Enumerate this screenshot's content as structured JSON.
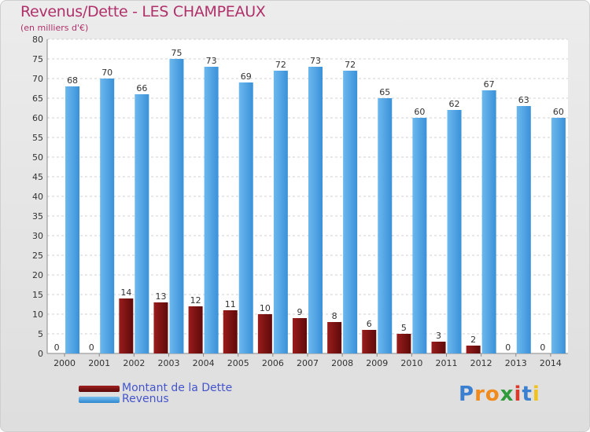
{
  "header": {
    "title": "Revenus/Dette - LES CHAMPEAUX",
    "subtitle": "(en milliers d'€)"
  },
  "legend": {
    "items": [
      {
        "label": "Montant de la Dette",
        "color": "#7a1010"
      },
      {
        "label": "Revenus",
        "color": "#4aa3e6"
      }
    ]
  },
  "logo": {
    "letters": [
      {
        "ch": "P",
        "color": "#3b7fd0"
      },
      {
        "ch": "r",
        "color": "#f08a1c"
      },
      {
        "ch": "o",
        "color": "#f08a1c"
      },
      {
        "ch": "x",
        "color": "#2f9b3a"
      },
      {
        "ch": "i",
        "color": "#d93a2a"
      },
      {
        "ch": "t",
        "color": "#3b7fd0"
      },
      {
        "ch": "i",
        "color": "#f2c21c"
      }
    ]
  },
  "chart_data": {
    "type": "bar",
    "title": "Revenus/Dette - LES CHAMPEAUX",
    "subtitle": "(en milliers d'€)",
    "categories": [
      "2000",
      "2001",
      "2002",
      "2003",
      "2004",
      "2005",
      "2006",
      "2007",
      "2008",
      "2009",
      "2010",
      "2011",
      "2012",
      "2013",
      "2014"
    ],
    "series": [
      {
        "name": "Montant de la Dette",
        "color": "#7a1010",
        "values": [
          0,
          0,
          14,
          13,
          12,
          11,
          10,
          9,
          8,
          6,
          5,
          3,
          2,
          0,
          0
        ]
      },
      {
        "name": "Revenus",
        "color": "#4aa3e6",
        "values": [
          68,
          70,
          66,
          75,
          73,
          69,
          72,
          73,
          72,
          65,
          60,
          62,
          67,
          63,
          60
        ]
      }
    ],
    "ylim": [
      0,
      80
    ],
    "yticks": [
      0,
      5,
      10,
      15,
      20,
      25,
      30,
      35,
      40,
      45,
      50,
      55,
      60,
      65,
      70,
      75,
      80
    ],
    "grid": true,
    "legend_position": "bottom-left"
  }
}
